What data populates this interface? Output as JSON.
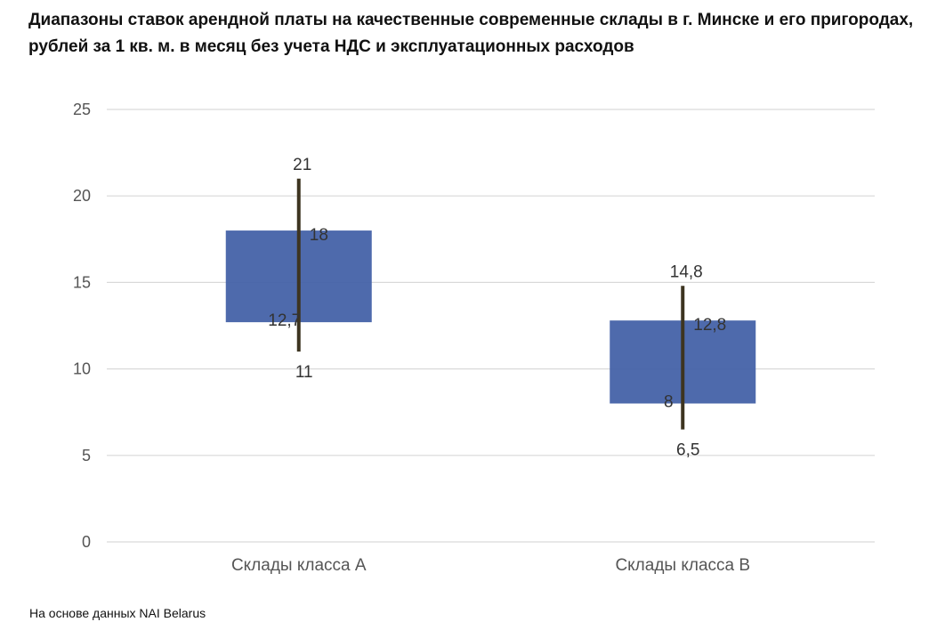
{
  "title": "Диапазоны ставок арендной платы на качественные современные склады в г. Минске и его пригородах, рублей за 1 кв. м. в месяц без учета НДС и эксплуатационных расходов",
  "source": "На основе данных NAI Belarus",
  "chart_data": {
    "type": "candlestick",
    "title": "Диапазоны ставок арендной платы на качественные современные склады в г. Минске и его пригородах, рублей за 1 кв. м. в месяц без учета НДС и эксплуатационных расходов",
    "categories": [
      "Склады класса A",
      "Склады класса B"
    ],
    "items": [
      {
        "category": "Склады класса A",
        "high": 21,
        "box_top": 18,
        "box_bottom": 12.7,
        "low": 11,
        "labels": {
          "high": "21",
          "box_top": "18",
          "box_bottom": "12,7",
          "low": "11"
        }
      },
      {
        "category": "Склады класса B",
        "high": 14.8,
        "box_top": 12.8,
        "box_bottom": 8,
        "low": 6.5,
        "labels": {
          "high": "14,8",
          "box_top": "12,8",
          "box_bottom": "8",
          "low": "6,5"
        }
      }
    ],
    "ylim": [
      0,
      25
    ],
    "yticks": [
      0,
      5,
      10,
      15,
      20,
      25
    ],
    "ytick_labels": [
      "0",
      "5",
      "10",
      "15",
      "20",
      "25"
    ],
    "grid": true,
    "legend": "none",
    "colors": {
      "box": "#4462a8",
      "wick": "#3d3420",
      "grid": "#d9d9d9"
    }
  }
}
